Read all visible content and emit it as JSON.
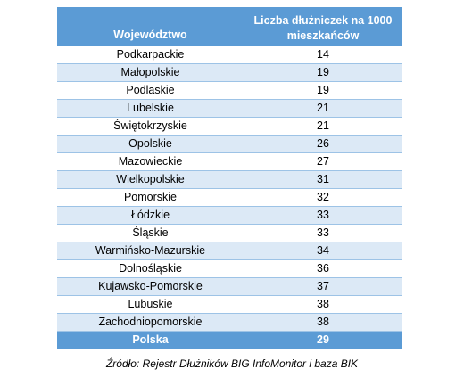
{
  "table": {
    "headers": {
      "region": "Województwo",
      "value": "Liczba dłużniczek na 1000 mieszkańców"
    },
    "rows": [
      {
        "region": "Podkarpackie",
        "value": "14"
      },
      {
        "region": "Małopolskie",
        "value": "19"
      },
      {
        "region": "Podlaskie",
        "value": "19"
      },
      {
        "region": "Lubelskie",
        "value": "21"
      },
      {
        "region": "Świętokrzyskie",
        "value": "21"
      },
      {
        "region": "Opolskie",
        "value": "26"
      },
      {
        "region": "Mazowieckie",
        "value": "27"
      },
      {
        "region": "Wielkopolskie",
        "value": "31"
      },
      {
        "region": "Pomorskie",
        "value": "32"
      },
      {
        "region": "Łódzkie",
        "value": "33"
      },
      {
        "region": "Śląskie",
        "value": "33"
      },
      {
        "region": "Warmińsko-Mazurskie",
        "value": "34"
      },
      {
        "region": "Dolnośląskie",
        "value": "36"
      },
      {
        "region": "Kujawsko-Pomorskie",
        "value": "37"
      },
      {
        "region": "Lubuskie",
        "value": "38"
      },
      {
        "region": "Zachodniopomorskie",
        "value": "38"
      }
    ],
    "total": {
      "region": "Polska",
      "value": "29"
    }
  },
  "source": "Źródło: Rejestr Dłużników BIG InfoMonitor i baza BIK",
  "colors": {
    "header_bg": "#5b9bd5",
    "stripe_bg": "#dce9f6",
    "row_border": "#9dc3e6",
    "header_text": "#ffffff"
  }
}
